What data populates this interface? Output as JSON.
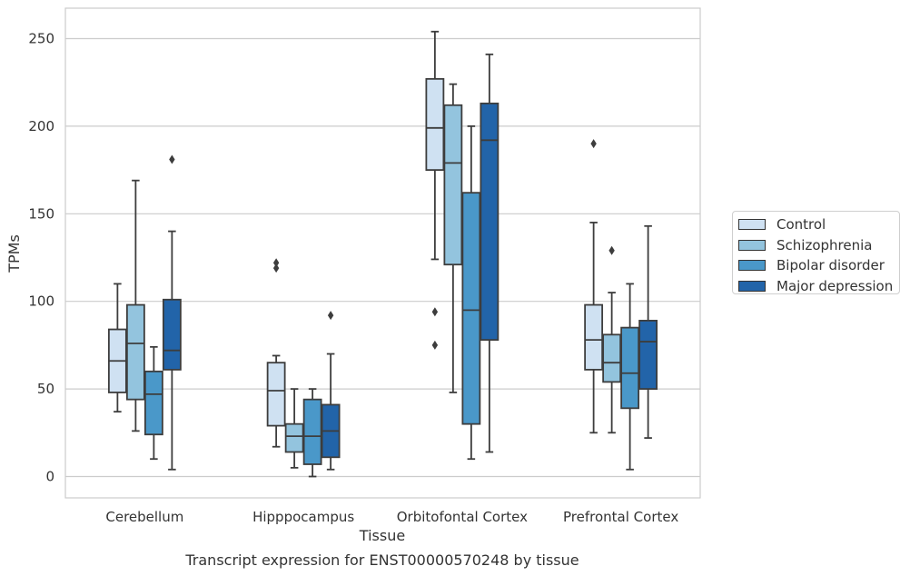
{
  "chart_data": {
    "type": "box",
    "xlabel": "Tissue",
    "ylabel": "TPMs",
    "caption": "Transcript expression for ENST00000570248 by tissue",
    "ylim": [
      -12,
      268
    ],
    "yticks": [
      0,
      50,
      100,
      150,
      200,
      250
    ],
    "grid": true,
    "legend_position": "right",
    "categories": [
      "Cerebellum",
      "Hipppocampus",
      "Orbitofontal Cortex",
      "Prefrontal Cortex"
    ],
    "series": [
      {
        "name": "Control",
        "color": "#cfe1f2",
        "boxes": [
          {
            "whislo": 37,
            "q1": 48,
            "med": 66,
            "q3": 84,
            "whishi": 110,
            "fliers": []
          },
          {
            "whislo": 17,
            "q1": 29,
            "med": 49,
            "q3": 65,
            "whishi": 69,
            "fliers": [
              119,
              122
            ]
          },
          {
            "whislo": 124,
            "q1": 175,
            "med": 199,
            "q3": 227,
            "whishi": 254,
            "fliers": [
              94,
              75
            ]
          },
          {
            "whislo": 25,
            "q1": 61,
            "med": 78,
            "q3": 98,
            "whishi": 145,
            "fliers": [
              190
            ]
          }
        ]
      },
      {
        "name": "Schizophrenia",
        "color": "#93c4de",
        "boxes": [
          {
            "whislo": 26,
            "q1": 44,
            "med": 76,
            "q3": 98,
            "whishi": 169,
            "fliers": []
          },
          {
            "whislo": 5,
            "q1": 14,
            "med": 23,
            "q3": 30,
            "whishi": 50,
            "fliers": []
          },
          {
            "whislo": 48,
            "q1": 121,
            "med": 179,
            "q3": 212,
            "whishi": 224,
            "fliers": []
          },
          {
            "whislo": 25,
            "q1": 54,
            "med": 65,
            "q3": 81,
            "whishi": 105,
            "fliers": [
              129
            ]
          }
        ]
      },
      {
        "name": "Bipolar disorder",
        "color": "#4a98c9",
        "boxes": [
          {
            "whislo": 10,
            "q1": 24,
            "med": 47,
            "q3": 60,
            "whishi": 74,
            "fliers": []
          },
          {
            "whislo": 0,
            "q1": 7,
            "med": 23,
            "q3": 44,
            "whishi": 50,
            "fliers": []
          },
          {
            "whislo": 10,
            "q1": 30,
            "med": 95,
            "q3": 162,
            "whishi": 200,
            "fliers": []
          },
          {
            "whislo": 4,
            "q1": 39,
            "med": 59,
            "q3": 85,
            "whishi": 110,
            "fliers": []
          }
        ]
      },
      {
        "name": "Major depression",
        "color": "#2264a9",
        "boxes": [
          {
            "whislo": 4,
            "q1": 61,
            "med": 72,
            "q3": 101,
            "whishi": 140,
            "fliers": [
              181
            ]
          },
          {
            "whislo": 4,
            "q1": 11,
            "med": 26,
            "q3": 41,
            "whishi": 70,
            "fliers": [
              92
            ]
          },
          {
            "whislo": 14,
            "q1": 78,
            "med": 192,
            "q3": 213,
            "whishi": 241,
            "fliers": []
          },
          {
            "whislo": 22,
            "q1": 50,
            "med": 77,
            "q3": 89,
            "whishi": 143,
            "fliers": []
          }
        ]
      }
    ]
  }
}
